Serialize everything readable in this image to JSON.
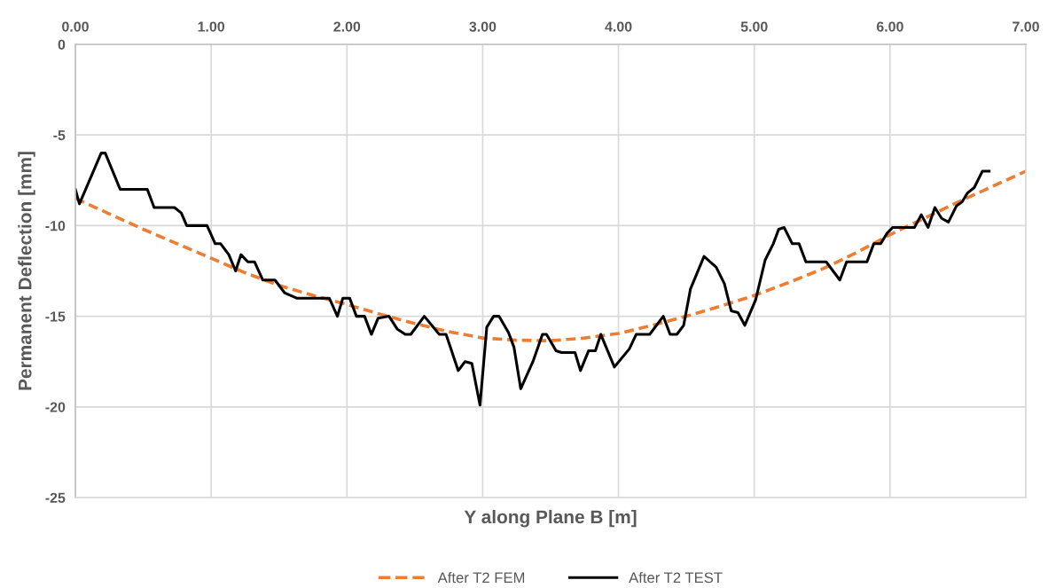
{
  "chart_data": {
    "type": "line",
    "xlabel": "Y along Plane B [m]",
    "ylabel": "Permanent Deflection [mm]",
    "xlim": [
      0,
      7
    ],
    "xticks": [
      {
        "value": 0,
        "label": "0.00"
      },
      {
        "value": 1,
        "label": "1.00"
      },
      {
        "value": 2,
        "label": "2.00"
      },
      {
        "value": 3,
        "label": "3.00"
      },
      {
        "value": 4,
        "label": "4.00"
      },
      {
        "value": 5,
        "label": "5.00"
      },
      {
        "value": 6,
        "label": "6.00"
      },
      {
        "value": 7,
        "label": "7.00"
      }
    ],
    "ylim": [
      -25,
      0
    ],
    "yticks": [
      -25,
      -20,
      -15,
      -10,
      -5,
      0
    ],
    "grid": true,
    "legend": "bottom",
    "marker": "none",
    "series": [
      {
        "name": "After T2 FEM",
        "color": "#ed7d31",
        "line_style": "dashed",
        "x": [
          0,
          0.25,
          0.5,
          0.75,
          1,
          1.25,
          1.5,
          1.75,
          2,
          2.25,
          2.5,
          2.75,
          3,
          3.25,
          3.5,
          3.75,
          4,
          4.25,
          4.5,
          4.75,
          5,
          5.25,
          5.5,
          5.75,
          6,
          6.25,
          6.5,
          6.75,
          7
        ],
        "values": [
          -8.5,
          -9.35,
          -10.2,
          -11.0,
          -11.8,
          -12.6,
          -13.3,
          -13.85,
          -14.35,
          -14.9,
          -15.4,
          -15.85,
          -16.2,
          -16.32,
          -16.35,
          -16.2,
          -15.95,
          -15.5,
          -15.0,
          -14.45,
          -13.85,
          -13.15,
          -12.4,
          -11.5,
          -10.5,
          -9.6,
          -8.7,
          -7.85,
          -7.0
        ]
      },
      {
        "name": "After T2 TEST",
        "color": "#000000",
        "line_style": "solid",
        "x": [
          0,
          0.03,
          0.19,
          0.22,
          0.33,
          0.53,
          0.58,
          0.73,
          0.78,
          0.82,
          0.97,
          1.03,
          1.07,
          1.13,
          1.18,
          1.22,
          1.27,
          1.32,
          1.38,
          1.47,
          1.54,
          1.63,
          1.87,
          1.93,
          1.97,
          2.02,
          2.07,
          2.13,
          2.18,
          2.23,
          2.31,
          2.37,
          2.43,
          2.47,
          2.57,
          2.68,
          2.73,
          2.82,
          2.87,
          2.92,
          2.98,
          3.03,
          3.08,
          3.12,
          3.19,
          3.23,
          3.28,
          3.37,
          3.44,
          3.47,
          3.54,
          3.58,
          3.68,
          3.72,
          3.78,
          3.83,
          3.87,
          3.97,
          4.08,
          4.13,
          4.23,
          4.33,
          4.38,
          4.43,
          4.48,
          4.53,
          4.63,
          4.72,
          4.78,
          4.83,
          4.88,
          4.93,
          5.01,
          5.08,
          5.14,
          5.18,
          5.22,
          5.28,
          5.33,
          5.38,
          5.53,
          5.63,
          5.68,
          5.83,
          5.88,
          5.93,
          5.98,
          6.02,
          6.18,
          6.23,
          6.28,
          6.33,
          6.38,
          6.43,
          6.49,
          6.53,
          6.57,
          6.62,
          6.68,
          6.73
        ],
        "values": [
          -8,
          -8.8,
          -6,
          -6,
          -8,
          -8,
          -9,
          -9,
          -9.3,
          -10,
          -10,
          -11,
          -11,
          -11.6,
          -12.5,
          -11.6,
          -12,
          -12,
          -13,
          -13,
          -13.7,
          -14,
          -14,
          -15,
          -14,
          -14,
          -15,
          -15,
          -16,
          -15.1,
          -15,
          -15.7,
          -16,
          -16,
          -15,
          -16,
          -16,
          -18,
          -17.5,
          -17.6,
          -19.9,
          -15.6,
          -15,
          -15,
          -15.9,
          -16.7,
          -19,
          -17.5,
          -16,
          -16,
          -16.9,
          -17,
          -17,
          -18,
          -16.9,
          -16.9,
          -16,
          -17.8,
          -16.8,
          -16,
          -16,
          -15,
          -16,
          -16,
          -15.5,
          -13.5,
          -11.7,
          -12.3,
          -13.2,
          -14.7,
          -14.8,
          -15.5,
          -14.1,
          -11.9,
          -11,
          -10.2,
          -10.1,
          -11,
          -11,
          -12,
          -12,
          -13,
          -12,
          -12,
          -11,
          -11,
          -10.4,
          -10.1,
          -10.1,
          -9.4,
          -10.1,
          -9,
          -9.6,
          -9.8,
          -8.9,
          -8.7,
          -8.2,
          -7.9,
          -7,
          -7
        ]
      }
    ]
  }
}
